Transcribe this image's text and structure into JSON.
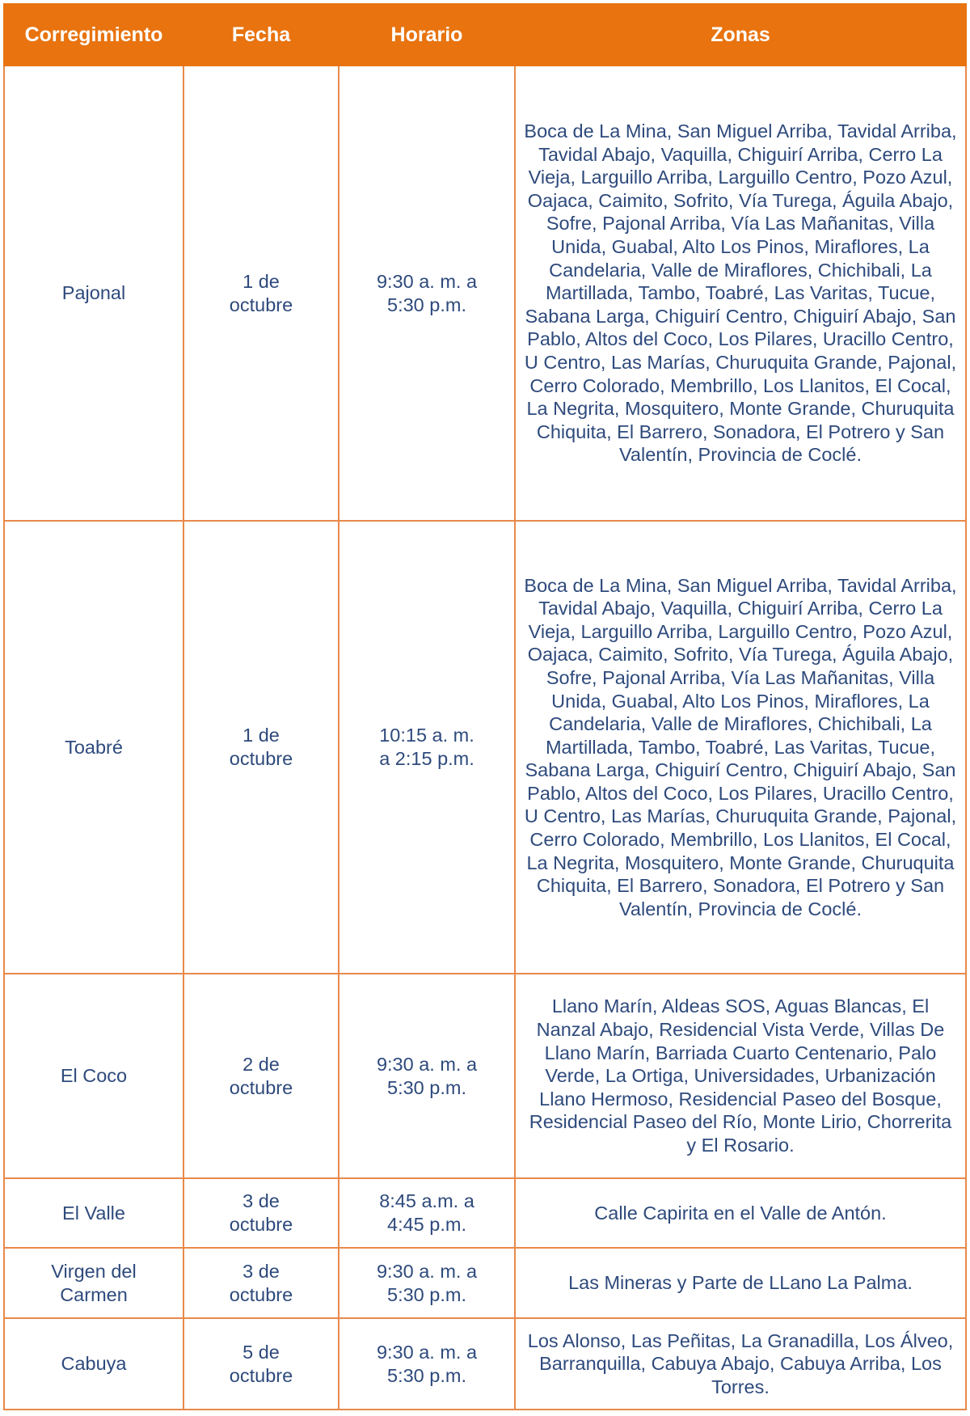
{
  "colors": {
    "header_bg": "#e8730f",
    "border": "#e8894a",
    "text": "#2e4a7c"
  },
  "headers": [
    "Corregimiento",
    "Fecha",
    "Horario",
    "Zonas"
  ],
  "rows": [
    {
      "corregimiento": "Pajonal",
      "fecha": "1 de octubre",
      "horario": "9:30 a. m. a 5:30 p.m.",
      "zonas": "Boca de La Mina, San Miguel Arriba, Tavidal Arriba, Tavidal Abajo, Vaquilla, Chiguirí Arriba, Cerro La Vieja, Larguillo  Arriba, Larguillo Centro, Pozo Azul, Oajaca, Caimito, Sofrito, Vía Turega, Águila Abajo, Sofre, Pajonal Arriba, Vía Las Mañanitas, Villa Unida, Guabal, Alto Los Pinos, Miraflores, La Candelaria, Valle de Miraflores, Chichibali, La Martillada, Tambo, Toabré, Las Varitas, Tucue, Sabana Larga, Chiguirí Centro, Chiguirí Abajo, San Pablo, Altos del Coco, Los Pilares, Uracillo Centro, U Centro, Las Marías, Churuquita Grande, Pajonal, Cerro Colorado, Membrillo, Los Llanitos, El Cocal, La Negrita, Mosquitero, Monte Grande, Churuquita Chiquita, El Barrero, Sonadora, El Potrero y San Valentín, Provincia de Coclé."
    },
    {
      "corregimiento": "Toabré",
      "fecha": "1 de octubre",
      "horario": "10:15 a. m. a 2:15 p.m.",
      "zonas": "Boca de La Mina, San Miguel Arriba, Tavidal Arriba, Tavidal Abajo, Vaquilla, Chiguirí Arriba, Cerro La Vieja, Larguillo Arriba, Larguillo Centro, Pozo Azul, Oajaca, Caimito, Sofrito, Vía Turega, Águila Abajo, Sofre, Pajonal Arriba, Vía Las Mañanitas, Villa Unida, Guabal, Alto Los Pinos, Miraflores, La Candelaria, Valle de Miraflores, Chichibali, La Martillada, Tambo, Toabré, Las Varitas, Tucue, Sabana Larga, Chiguirí Centro, Chiguirí Abajo, San Pablo, Altos del Coco, Los Pilares, Uracillo Centro, U Centro, Las Marías, Churuquita Grande, Pajonal, Cerro Colorado, Membrillo, Los Llanitos, El Cocal, La Negrita, Mosquitero, Monte Grande, Churuquita Chiquita, El Barrero, Sonadora, El Potrero y San Valentín, Provincia de Coclé."
    },
    {
      "corregimiento": "El Coco",
      "fecha": "2 de octubre",
      "horario": "9:30 a. m. a 5:30 p.m.",
      "zonas": "Llano Marín, Aldeas SOS, Aguas Blancas, El Nanzal Abajo, Residencial Vista Verde, Villas De Llano Marín, Barriada Cuarto Centenario, Palo Verde, La Ortiga, Universidades, Urbanización Llano Hermoso, Residencial Paseo del Bosque, Residencial Paseo del Río, Monte Lirio, Chorrerita y El Rosario."
    },
    {
      "corregimiento": "El Valle",
      "fecha": "3 de octubre",
      "horario": "8:45 a.m. a 4:45 p.m.",
      "zonas": "Calle Capirita en el Valle de Antón."
    },
    {
      "corregimiento": "Virgen del Carmen",
      "fecha": "3 de octubre",
      "horario": "9:30 a. m. a 5:30 p.m.",
      "zonas": "Las Mineras y Parte de LLano La Palma."
    },
    {
      "corregimiento": "Cabuya",
      "fecha": "5 de octubre",
      "horario": "9:30 a. m. a 5:30 p.m.",
      "zonas": "Los Alonso, Las Peñitas, La Granadilla, Los Álveo, Barranquilla, Cabuya Abajo, Cabuya Arriba, Los Torres."
    }
  ]
}
